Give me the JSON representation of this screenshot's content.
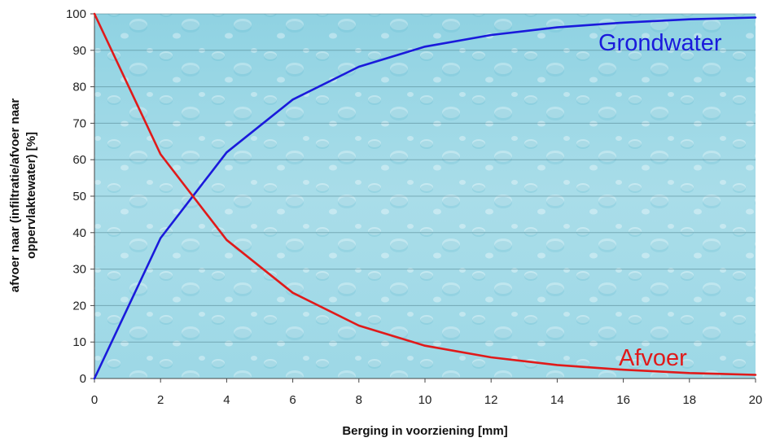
{
  "chart_data": {
    "type": "line",
    "title": "",
    "xlabel": "Berging in voorziening [mm]",
    "ylabel_line1": "afvoer naar (infiltratie/afvoer naar",
    "ylabel_line2": "oppervlaktewater) [%]",
    "xlim": [
      0,
      20
    ],
    "ylim": [
      0,
      100
    ],
    "x_ticks": [
      0,
      2,
      4,
      6,
      8,
      10,
      12,
      14,
      16,
      18,
      20
    ],
    "y_ticks": [
      0,
      10,
      20,
      30,
      40,
      50,
      60,
      70,
      80,
      90,
      100
    ],
    "grid": true,
    "background": "water-droplets",
    "series": [
      {
        "name": "Grondwater",
        "color": "#1a1adb",
        "x": [
          0,
          2,
          4,
          6,
          8,
          10,
          12,
          14,
          16,
          18,
          20
        ],
        "values": [
          0,
          38.5,
          62,
          76.5,
          85.5,
          91,
          94.2,
          96.3,
          97.6,
          98.5,
          99
        ]
      },
      {
        "name": "Afvoer",
        "color": "#e01a1a",
        "x": [
          0,
          2,
          4,
          6,
          8,
          10,
          12,
          14,
          16,
          18,
          20
        ],
        "values": [
          100,
          61.5,
          38,
          23.5,
          14.5,
          9,
          5.8,
          3.7,
          2.4,
          1.5,
          1
        ]
      }
    ]
  }
}
